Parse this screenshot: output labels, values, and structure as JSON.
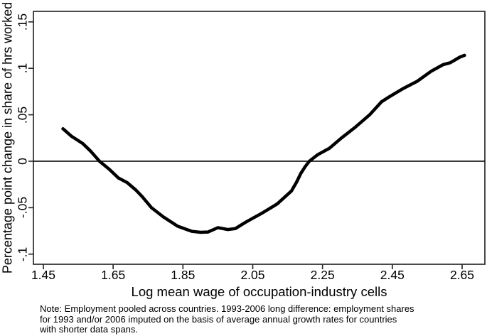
{
  "chart_data": {
    "type": "line",
    "title": "",
    "xlabel": "Log mean wage of occupation-industry cells",
    "ylabel": "Percentage point change in share of hrs worked",
    "xlim": [
      1.4215,
      2.7152
    ],
    "ylim": [
      -0.1109,
      0.1613
    ],
    "grid": false,
    "legend": "none",
    "zero_line": true,
    "x_ticks": [
      1.45,
      1.65,
      1.85,
      2.05,
      2.25,
      2.45,
      2.65
    ],
    "x_tick_labels": [
      "1.45",
      "1.65",
      "1.85",
      "2.05",
      "2.25",
      "2.45",
      "2.65"
    ],
    "y_ticks": [
      -0.1,
      -0.05,
      0,
      0.05,
      0.1,
      0.15
    ],
    "y_tick_labels": [
      "-.1",
      "-.05",
      "0",
      ".05",
      ".1",
      ".15"
    ],
    "line_color": "#000000",
    "axis_color": "#2b2b2b",
    "series": [
      {
        "name": "",
        "x": [
          1.506,
          1.53,
          1.563,
          1.585,
          1.611,
          1.64,
          1.665,
          1.69,
          1.715,
          1.733,
          1.76,
          1.794,
          1.835,
          1.876,
          1.9,
          1.922,
          1.95,
          1.978,
          2.0,
          2.028,
          2.052,
          2.076,
          2.12,
          2.161,
          2.175,
          2.188,
          2.2,
          2.212,
          2.236,
          2.27,
          2.304,
          2.345,
          2.385,
          2.419,
          2.44,
          2.48,
          2.521,
          2.562,
          2.596,
          2.616,
          2.643,
          2.657
        ],
        "y": [
          0.035,
          0.027,
          0.019,
          0.011,
          0.0,
          -0.009,
          -0.018,
          -0.023,
          -0.031,
          -0.038,
          -0.05,
          -0.06,
          -0.07,
          -0.0755,
          -0.0765,
          -0.0762,
          -0.0715,
          -0.0735,
          -0.0725,
          -0.066,
          -0.061,
          -0.056,
          -0.046,
          -0.032,
          -0.023,
          -0.013,
          -0.006,
          0.0,
          0.007,
          0.014,
          0.025,
          0.037,
          0.05,
          0.064,
          0.069,
          0.078,
          0.086,
          0.097,
          0.104,
          0.106,
          0.112,
          0.114
        ]
      }
    ]
  },
  "note": {
    "text": "Note: Employment pooled across countries. 1993-2006 long difference: employment shares\nfor 1993 and/or 2006 imputed on the basis of average annual growth rates for countries\nwith shorter data spans."
  }
}
